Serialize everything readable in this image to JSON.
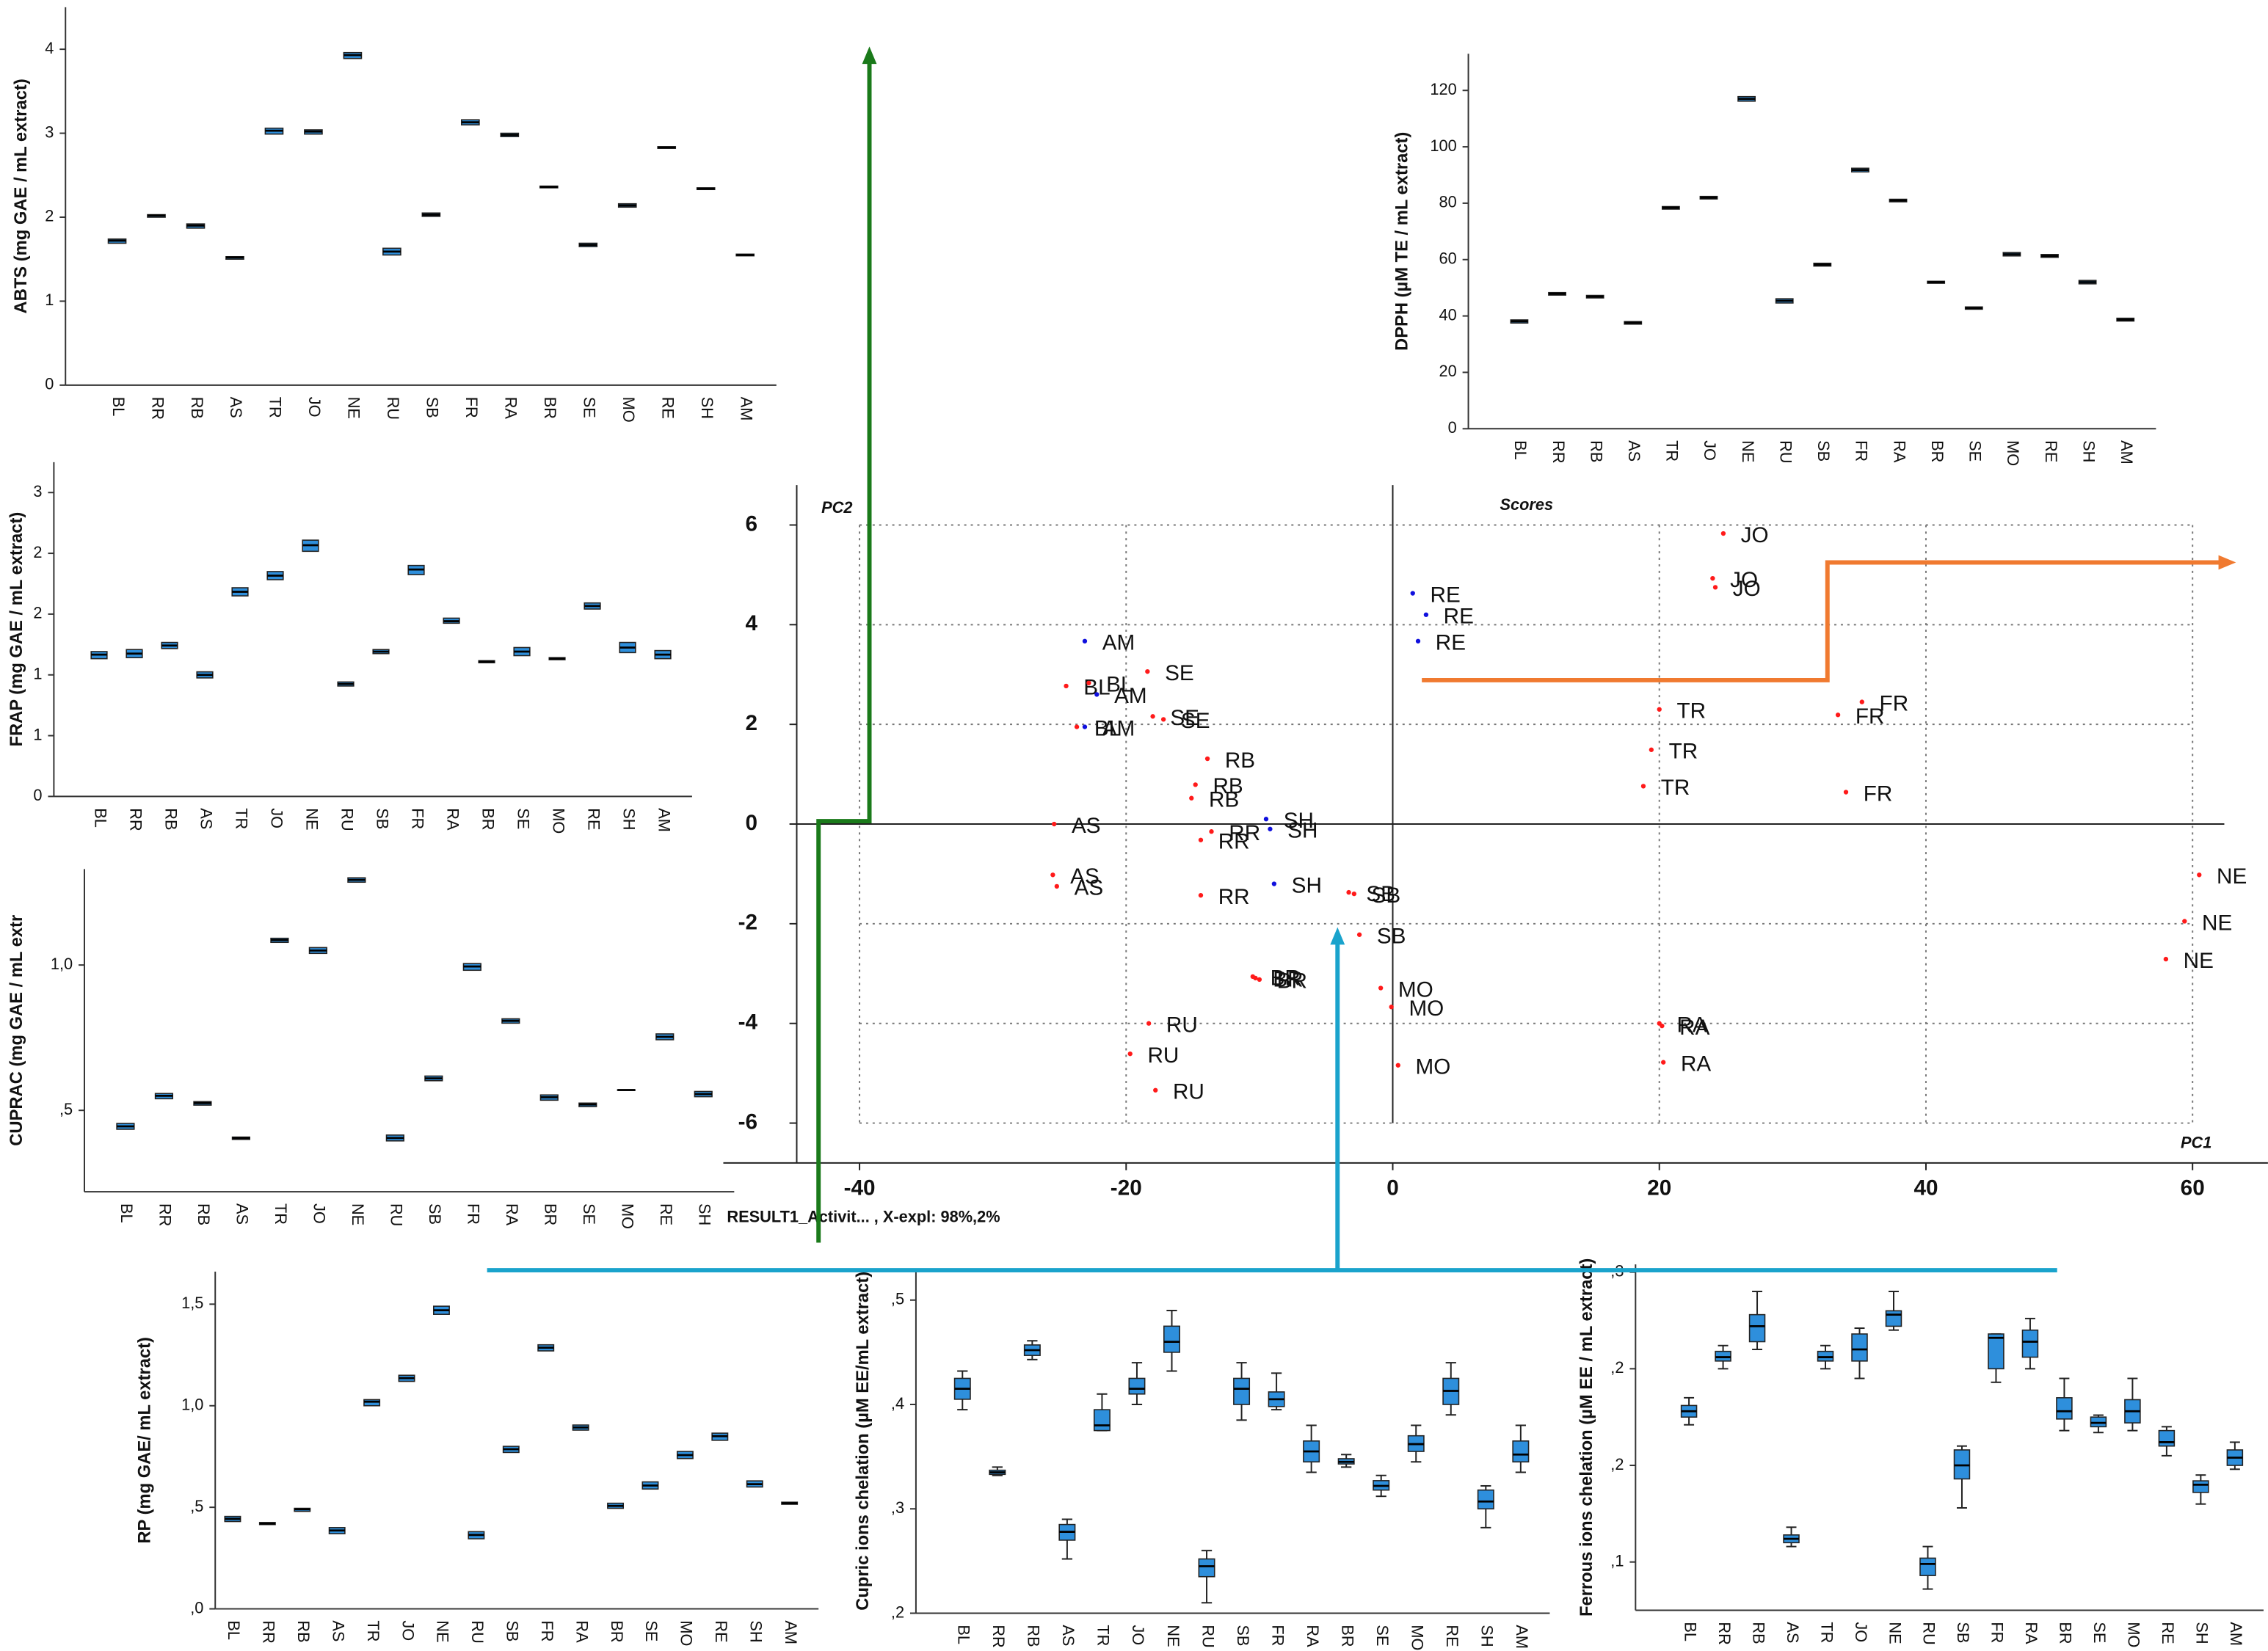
{
  "chart_data": [
    {
      "type": "box",
      "ylabel": "ABTS (mg GAE / mL extract)",
      "color": "#2e8fdc",
      "categories": [
        "BL",
        "RR",
        "RB",
        "AS",
        "TR",
        "JO",
        "NE",
        "RU",
        "SB",
        "FR",
        "RA",
        "BR",
        "SE",
        "MO",
        "RE",
        "SH",
        "AM"
      ],
      "q1": [
        1.69,
        2.0,
        1.87,
        1.5,
        2.99,
        2.99,
        3.89,
        1.55,
        2.01,
        3.1,
        2.96,
        2.35,
        1.65,
        2.12,
        2.82,
        2.33,
        1.54
      ],
      "median": [
        1.72,
        2.02,
        1.9,
        1.52,
        3.03,
        3.02,
        3.93,
        1.59,
        2.03,
        3.13,
        2.98,
        2.36,
        1.67,
        2.14,
        2.83,
        2.34,
        1.55
      ],
      "q3": [
        1.74,
        2.03,
        1.92,
        1.53,
        3.06,
        3.04,
        3.96,
        1.63,
        2.05,
        3.16,
        3.0,
        2.37,
        1.69,
        2.16,
        2.84,
        2.35,
        1.56
      ],
      "ylim": [
        0,
        4.5
      ],
      "yticks": [
        0,
        1,
        2,
        3,
        4
      ]
    },
    {
      "type": "box",
      "ylabel": "DPPH (µM TE / mL extract)",
      "color": "#2e8fdc",
      "categories": [
        "BL",
        "RR",
        "RB",
        "AS",
        "TR",
        "JO",
        "NE",
        "RU",
        "SB",
        "FR",
        "RA",
        "BR",
        "SE",
        "MO",
        "RE",
        "SH",
        "AM"
      ],
      "q1": [
        37.5,
        47.4,
        46.4,
        37.1,
        77.9,
        81.5,
        116.2,
        44.6,
        57.7,
        91.1,
        80.5,
        51.6,
        42.4,
        61.3,
        60.8,
        51.4,
        38.2
      ],
      "median": [
        38.1,
        47.9,
        46.9,
        37.6,
        78.4,
        82,
        117,
        45.4,
        58.2,
        91.8,
        81,
        52,
        42.8,
        61.9,
        61.3,
        52,
        38.7
      ],
      "q3": [
        38.6,
        48.3,
        47.3,
        38.0,
        78.8,
        82.4,
        117.8,
        46.1,
        58.7,
        92.4,
        81.4,
        52.3,
        43.2,
        62.5,
        61.8,
        52.6,
        39.2
      ],
      "ylim": [
        0,
        133
      ],
      "yticks": [
        0,
        20,
        40,
        60,
        80,
        100,
        120
      ]
    },
    {
      "type": "box",
      "ylabel": "FRAP (mg GAE / mL extract)",
      "color": "#2e8fdc",
      "categories": [
        "BL",
        "RR",
        "RB",
        "AS",
        "TR",
        "JO",
        "NE",
        "RU",
        "SB",
        "FR",
        "RA",
        "BR",
        "SE",
        "MO",
        "RE",
        "SH",
        "AM"
      ],
      "q1": [
        1.36,
        1.37,
        1.46,
        1.17,
        1.98,
        2.14,
        2.42,
        1.09,
        1.41,
        2.19,
        1.71,
        1.32,
        1.39,
        1.35,
        1.85,
        1.42,
        1.36
      ],
      "median": [
        1.4,
        1.41,
        1.49,
        1.2,
        2.02,
        2.18,
        2.48,
        1.11,
        1.43,
        2.24,
        1.73,
        1.33,
        1.43,
        1.36,
        1.88,
        1.47,
        1.4
      ],
      "q3": [
        1.43,
        1.45,
        1.52,
        1.23,
        2.06,
        2.22,
        2.53,
        1.13,
        1.45,
        2.28,
        1.76,
        1.34,
        1.47,
        1.37,
        1.91,
        1.52,
        1.44
      ],
      "ylim": [
        0,
        3.3
      ],
      "yticks": [
        0,
        {
          "value": 0.6,
          "label": "1"
        },
        {
          "value": 1.2,
          "label": "1"
        },
        {
          "value": 1.8,
          "label": "2"
        },
        {
          "value": 2.4,
          "label": "2"
        },
        3
      ]
    },
    {
      "type": "box",
      "ylabel": "CUPRAC (mg GAE / mL extr",
      "color": "#2e8fdc",
      "categories": [
        "BL",
        "RR",
        "RB",
        "AS",
        "TR",
        "JO",
        "NE",
        "RU",
        "SB",
        "FR",
        "RA",
        "BR",
        "SE",
        "MO",
        "RE",
        "SH"
      ],
      "q1": [
        0.435,
        0.54,
        0.518,
        0.4,
        1.078,
        1.04,
        1.285,
        0.395,
        0.602,
        0.982,
        0.8,
        0.535,
        0.513,
        0.569,
        0.743,
        0.547
      ],
      "median": [
        0.445,
        0.55,
        0.525,
        0.405,
        1.086,
        1.05,
        1.293,
        0.405,
        0.61,
        0.995,
        0.808,
        0.545,
        0.52,
        0.57,
        0.753,
        0.556
      ],
      "q3": [
        0.455,
        0.558,
        0.53,
        0.408,
        1.092,
        1.06,
        1.3,
        0.415,
        0.618,
        1.005,
        0.815,
        0.553,
        0.525,
        0.571,
        0.763,
        0.565
      ],
      "ylim": [
        0.22,
        1.33
      ],
      "yticks": [
        {
          "value": 0.5,
          "label": ",5"
        },
        {
          "value": 1.0,
          "label": "1,0"
        }
      ]
    },
    {
      "type": "scatter",
      "title": "Scores",
      "xlabel": "PC1",
      "ylabel": "PC2",
      "note": "RESULT1_Activit... , X-expl: 98%,2%",
      "xlim": [
        -50,
        65
      ],
      "ylim": [
        -6.8,
        6.8
      ],
      "xticks": [
        -40,
        -20,
        0,
        20,
        40,
        60
      ],
      "yticks": [
        -6,
        -4,
        -2,
        0,
        2,
        4,
        6
      ],
      "grid": true,
      "series": [
        {
          "color": "#ff1a1a",
          "x": [
            -24.5,
            -22.8,
            -23.7,
            -18.4,
            -18,
            -17.2,
            -13.9,
            -14.8,
            -15.1,
            -13.6,
            -14.4,
            -14.4,
            -25.4,
            -25.5,
            -25.2,
            -18.3,
            -19.7,
            -17.8,
            -10.5,
            -10.3,
            -10,
            -3.3,
            -2.9,
            -2.5,
            -0.9,
            -0.1,
            0.4,
            20,
            19.4,
            18.8,
            24.8,
            24,
            24.2,
            35.2,
            33.4,
            34,
            20,
            20.2,
            20.3,
            60.5,
            59.4,
            58
          ],
          "y": [
            2.77,
            2.83,
            1.95,
            3.06,
            2.16,
            2.1,
            1.31,
            0.79,
            0.52,
            -0.15,
            -0.32,
            -1.43,
            0,
            -1.02,
            -1.25,
            -4,
            -4.61,
            -5.34,
            -3.06,
            -3.09,
            -3.12,
            -1.37,
            -1.4,
            -2.22,
            -3.29,
            -3.67,
            -4.84,
            2.3,
            1.49,
            0.76,
            5.83,
            4.93,
            4.75,
            2.45,
            2.19,
            0.64,
            -4,
            -4.05,
            -4.78,
            -1.02,
            -1.95,
            -2.71
          ],
          "labels": [
            "BL",
            "BL",
            "BL",
            "SE",
            "SE",
            "SE",
            "RB",
            "RB",
            "RB",
            "RR",
            "RR",
            "RR",
            "AS",
            "AS",
            "AS",
            "RU",
            "RU",
            "RU",
            "BR",
            "BR",
            "BR",
            "SB",
            "SB",
            "SB",
            "MO",
            "MO",
            "MO",
            "TR",
            "TR",
            "TR",
            "JO",
            "JO",
            "JO",
            "FR",
            "FR",
            "FR",
            "RA",
            "RA",
            "RA",
            "NE",
            "NE",
            "NE"
          ]
        },
        {
          "color": "#1010dd",
          "x": [
            -23.1,
            -22.2,
            -23.1,
            1.5,
            2.5,
            1.9,
            -9.5,
            -9.2,
            -8.9
          ],
          "y": [
            3.67,
            2.6,
            1.95,
            4.63,
            4.2,
            3.67,
            0.1,
            -0.1,
            -1.2
          ],
          "labels": [
            "AM",
            "AM",
            "AM",
            "RE",
            "RE",
            "RE",
            "SH",
            "SH",
            "SH"
          ]
        }
      ]
    },
    {
      "type": "box",
      "ylabel": "RP (mg GAE/ mL extract)",
      "color": "#2e8fdc",
      "categories": [
        "BL",
        "RR",
        "RB",
        "AS",
        "TR",
        "JO",
        "NE",
        "RU",
        "SB",
        "FR",
        "RA",
        "BR",
        "SE",
        "MO",
        "RE",
        "SH",
        "AM"
      ],
      "q1": [
        0.43,
        0.415,
        0.48,
        0.37,
        1.0,
        1.12,
        1.45,
        0.345,
        0.77,
        1.27,
        0.88,
        0.495,
        0.59,
        0.74,
        0.83,
        0.6,
        0.515
      ],
      "median": [
        0.443,
        0.42,
        0.49,
        0.386,
        1.02,
        1.136,
        1.47,
        0.364,
        0.786,
        1.286,
        0.893,
        0.507,
        0.607,
        0.757,
        0.85,
        0.614,
        0.52
      ],
      "q3": [
        0.455,
        0.425,
        0.495,
        0.4,
        1.03,
        1.15,
        1.49,
        0.38,
        0.8,
        1.3,
        0.905,
        0.52,
        0.625,
        0.775,
        0.865,
        0.63,
        0.525
      ],
      "ylim": [
        0,
        1.66
      ],
      "yticks": [
        {
          "value": 0,
          "label": ",0"
        },
        {
          "value": 0.5,
          "label": ",5"
        },
        {
          "value": 1.0,
          "label": "1,0"
        },
        {
          "value": 1.5,
          "label": "1,5"
        }
      ]
    },
    {
      "type": "box",
      "ylabel": "Cupric ions chelation (µM EE/mL extract)",
      "color": "#2e8fdc",
      "categories": [
        "BL",
        "RR",
        "RB",
        "AS",
        "TR",
        "JO",
        "NE",
        "RU",
        "SB",
        "FR",
        "RA",
        "BR",
        "SE",
        "MO",
        "RE",
        "SH",
        "AM"
      ],
      "min": [
        0.395,
        0.332,
        0.443,
        0.252,
        0.375,
        0.4,
        0.432,
        0.21,
        0.385,
        0.395,
        0.335,
        0.34,
        0.312,
        0.345,
        0.39,
        0.282,
        0.335
      ],
      "q1": [
        0.405,
        0.333,
        0.447,
        0.27,
        0.375,
        0.41,
        0.45,
        0.235,
        0.4,
        0.398,
        0.345,
        0.343,
        0.318,
        0.355,
        0.4,
        0.3,
        0.345
      ],
      "median": [
        0.415,
        0.335,
        0.452,
        0.278,
        0.38,
        0.415,
        0.46,
        0.245,
        0.415,
        0.405,
        0.355,
        0.345,
        0.322,
        0.362,
        0.413,
        0.307,
        0.352
      ],
      "q3": [
        0.425,
        0.337,
        0.457,
        0.285,
        0.395,
        0.425,
        0.475,
        0.252,
        0.425,
        0.412,
        0.365,
        0.348,
        0.327,
        0.37,
        0.425,
        0.318,
        0.365
      ],
      "max": [
        0.432,
        0.34,
        0.461,
        0.29,
        0.41,
        0.44,
        0.49,
        0.26,
        0.44,
        0.43,
        0.38,
        0.352,
        0.332,
        0.38,
        0.44,
        0.322,
        0.38
      ],
      "ylim": [
        0.2,
        0.53
      ],
      "yticks": [
        {
          "value": 0.2,
          "label": ",2"
        },
        {
          "value": 0.3,
          "label": ",3"
        },
        {
          "value": 0.4,
          "label": ",4"
        },
        {
          "value": 0.5,
          "label": ",5"
        }
      ]
    },
    {
      "type": "box",
      "ylabel": "Ferrous ions chelation (µM EE / mL extract)",
      "color": "#2e8fdc",
      "categories": [
        "BL",
        "RR",
        "RB",
        "AS",
        "TR",
        "JO",
        "NE",
        "RU",
        "SB",
        "FR",
        "RA",
        "BR",
        "SE",
        "MO",
        "RE",
        "SH",
        "AM"
      ],
      "min": [
        0.171,
        0.2,
        0.21,
        0.108,
        0.2,
        0.195,
        0.22,
        0.086,
        0.128,
        0.193,
        0.2,
        0.168,
        0.167,
        0.168,
        0.155,
        0.13,
        0.148
      ],
      "q1": [
        0.175,
        0.204,
        0.214,
        0.11,
        0.204,
        0.204,
        0.222,
        0.093,
        0.143,
        0.2,
        0.206,
        0.174,
        0.17,
        0.172,
        0.16,
        0.136,
        0.15
      ],
      "median": [
        0.178,
        0.206,
        0.222,
        0.112,
        0.206,
        0.21,
        0.228,
        0.099,
        0.15,
        0.216,
        0.214,
        0.178,
        0.172,
        0.178,
        0.162,
        0.14,
        0.154
      ],
      "q3": [
        0.181,
        0.209,
        0.228,
        0.114,
        0.209,
        0.218,
        0.23,
        0.102,
        0.158,
        0.218,
        0.22,
        0.185,
        0.175,
        0.184,
        0.168,
        0.142,
        0.158
      ],
      "max": [
        0.185,
        0.212,
        0.24,
        0.118,
        0.212,
        0.221,
        0.24,
        0.108,
        0.16,
        0.218,
        0.226,
        0.195,
        0.176,
        0.195,
        0.17,
        0.145,
        0.162
      ],
      "ylim": [
        0.075,
        0.254
      ],
      "yticks": [
        {
          "value": 0.1,
          "label": ",1"
        },
        {
          "value": 0.15,
          "label": ",2"
        },
        {
          "value": 0.2,
          "label": ",2"
        },
        {
          "value": 0.25,
          "label": ",3"
        }
      ]
    }
  ]
}
